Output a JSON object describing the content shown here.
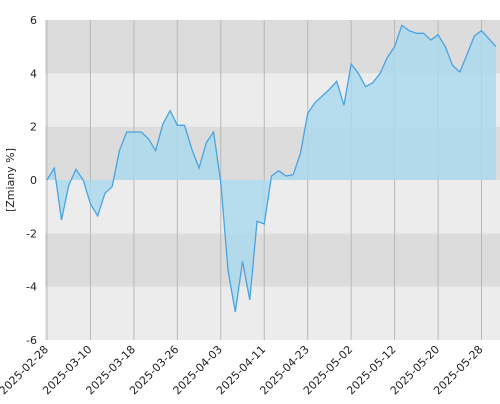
{
  "chart_data": {
    "type": "area",
    "y_label": "[Zmiany %]",
    "categories": [
      "2025-02-28",
      null,
      null,
      null,
      null,
      null,
      "2025-03-10",
      null,
      null,
      null,
      null,
      null,
      "2025-03-18",
      null,
      null,
      null,
      null,
      null,
      "2025-03-26",
      null,
      null,
      null,
      null,
      null,
      "2025-04-03",
      null,
      null,
      null,
      null,
      null,
      "2025-04-11",
      null,
      null,
      null,
      null,
      null,
      "2025-04-23",
      null,
      null,
      null,
      null,
      null,
      "2025-05-02",
      null,
      null,
      null,
      null,
      null,
      "2025-05-12",
      null,
      null,
      null,
      null,
      null,
      "2025-05-20",
      null,
      null,
      null,
      null,
      null,
      "2025-05-28",
      null,
      null
    ],
    "values": [
      0,
      0.45,
      -1.5,
      -0.2,
      0.4,
      0,
      -0.9,
      -1.35,
      -0.5,
      -0.25,
      1.1,
      1.8,
      1.8,
      1.8,
      1.55,
      1.1,
      2.1,
      2.6,
      2.05,
      2.05,
      1.15,
      0.45,
      1.4,
      1.8,
      -0.1,
      -3.4,
      -4.95,
      -3.05,
      -4.5,
      -1.55,
      -1.65,
      0.15,
      0.35,
      0.15,
      0.2,
      1.0,
      2.5,
      2.9,
      3.15,
      3.4,
      3.7,
      2.8,
      4.35,
      4.0,
      3.5,
      3.65,
      4.0,
      4.6,
      5.0,
      5.8,
      5.6,
      5.5,
      5.5,
      5.25,
      5.45,
      5.0,
      4.3,
      4.05,
      4.7,
      5.4,
      5.6,
      5.3,
      5.0
    ],
    "color": "#4aa3df",
    "fill": "#a9d9ee",
    "ylim": [
      -6,
      6
    ],
    "yticks": [
      -6,
      -4,
      -2,
      0,
      2,
      4,
      6
    ],
    "bands": [
      "#ececec",
      "#dcdcdc"
    ],
    "grid": true
  }
}
